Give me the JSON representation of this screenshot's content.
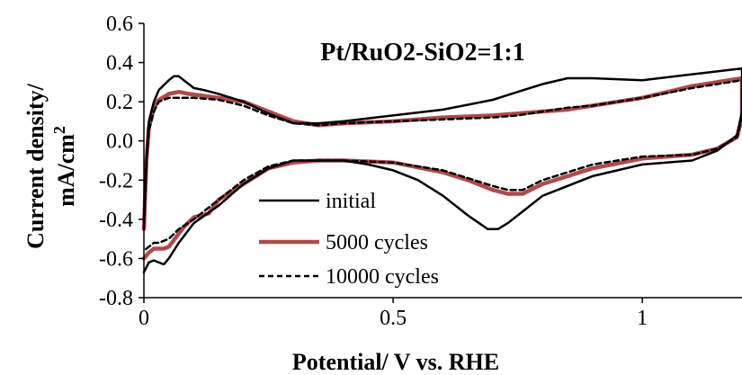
{
  "chart_data": {
    "type": "line",
    "title": "Pt/RuO2-SiO2=1:1",
    "xlabel": "Potential/ V vs. RHE",
    "ylabel_line1": "Current density/",
    "ylabel_line2": "mA/cm",
    "ylabel_sup": "2",
    "xlim": [
      0,
      1.2
    ],
    "ylim": [
      -0.8,
      0.6
    ],
    "x_ticks": [
      0,
      0.5,
      1
    ],
    "x_tick_labels": [
      "0",
      "0.5",
      "1"
    ],
    "y_ticks": [
      -0.8,
      -0.6,
      -0.4,
      -0.2,
      0.0,
      0.2,
      0.4,
      0.6
    ],
    "y_tick_labels": [
      "-0.8",
      "-0.6",
      "-0.4",
      "-0.2",
      "0.0",
      "0.2",
      "0.4",
      "0.6"
    ],
    "grid": false,
    "legend_position": "lower-left",
    "series": [
      {
        "name": "initial",
        "color": "#000000",
        "style": "solid",
        "x": [
          0.0,
          0.005,
          0.01,
          0.02,
          0.03,
          0.05,
          0.06,
          0.07,
          0.08,
          0.09,
          0.1,
          0.12,
          0.15,
          0.2,
          0.25,
          0.3,
          0.35,
          0.4,
          0.5,
          0.6,
          0.7,
          0.75,
          0.8,
          0.85,
          0.9,
          1.0,
          1.1,
          1.2,
          1.2,
          1.19,
          1.15,
          1.1,
          1.0,
          0.9,
          0.8,
          0.76,
          0.73,
          0.71,
          0.69,
          0.65,
          0.6,
          0.55,
          0.5,
          0.45,
          0.4,
          0.35,
          0.3,
          0.25,
          0.2,
          0.15,
          0.1,
          0.07,
          0.05,
          0.04,
          0.02,
          0.01,
          0.0
        ],
        "y": [
          -0.45,
          -0.1,
          0.1,
          0.2,
          0.26,
          0.31,
          0.33,
          0.33,
          0.31,
          0.29,
          0.27,
          0.26,
          0.24,
          0.2,
          0.14,
          0.09,
          0.09,
          0.1,
          0.13,
          0.16,
          0.21,
          0.25,
          0.29,
          0.32,
          0.32,
          0.31,
          0.34,
          0.37,
          0.15,
          0.03,
          -0.05,
          -0.1,
          -0.12,
          -0.18,
          -0.28,
          -0.36,
          -0.42,
          -0.45,
          -0.45,
          -0.38,
          -0.28,
          -0.2,
          -0.15,
          -0.12,
          -0.1,
          -0.1,
          -0.1,
          -0.14,
          -0.22,
          -0.33,
          -0.42,
          -0.52,
          -0.6,
          -0.63,
          -0.61,
          -0.62,
          -0.67
        ]
      },
      {
        "name": "5000 cycles",
        "color": "#b04a4a",
        "style": "solid",
        "x": [
          0.0,
          0.005,
          0.01,
          0.02,
          0.03,
          0.05,
          0.07,
          0.09,
          0.12,
          0.15,
          0.2,
          0.25,
          0.3,
          0.35,
          0.4,
          0.5,
          0.6,
          0.7,
          0.75,
          0.8,
          0.85,
          0.9,
          1.0,
          1.1,
          1.2,
          1.2,
          1.19,
          1.15,
          1.1,
          1.0,
          0.9,
          0.8,
          0.76,
          0.73,
          0.7,
          0.65,
          0.6,
          0.5,
          0.4,
          0.35,
          0.3,
          0.25,
          0.2,
          0.15,
          0.13,
          0.1,
          0.08,
          0.05,
          0.04,
          0.02,
          0.01,
          0.0
        ],
        "y": [
          -0.45,
          -0.1,
          0.07,
          0.17,
          0.21,
          0.24,
          0.25,
          0.24,
          0.23,
          0.22,
          0.2,
          0.15,
          0.1,
          0.08,
          0.09,
          0.1,
          0.12,
          0.13,
          0.14,
          0.15,
          0.16,
          0.18,
          0.22,
          0.28,
          0.32,
          0.12,
          0.02,
          -0.04,
          -0.07,
          -0.09,
          -0.14,
          -0.22,
          -0.27,
          -0.27,
          -0.25,
          -0.2,
          -0.16,
          -0.11,
          -0.1,
          -0.1,
          -0.11,
          -0.14,
          -0.22,
          -0.3,
          -0.37,
          -0.39,
          -0.44,
          -0.54,
          -0.55,
          -0.55,
          -0.57,
          -0.6
        ]
      },
      {
        "name": "10000 cycles",
        "color": "#000000",
        "style": "dashed",
        "x": [
          0.0,
          0.005,
          0.01,
          0.02,
          0.03,
          0.05,
          0.07,
          0.1,
          0.15,
          0.2,
          0.25,
          0.3,
          0.35,
          0.4,
          0.5,
          0.6,
          0.7,
          0.75,
          0.8,
          0.85,
          0.9,
          1.0,
          1.1,
          1.2,
          1.2,
          1.19,
          1.15,
          1.1,
          1.0,
          0.9,
          0.8,
          0.76,
          0.73,
          0.7,
          0.65,
          0.6,
          0.5,
          0.4,
          0.35,
          0.3,
          0.25,
          0.2,
          0.15,
          0.1,
          0.07,
          0.05,
          0.03,
          0.02,
          0.01,
          0.0
        ],
        "y": [
          -0.4,
          -0.1,
          0.05,
          0.15,
          0.2,
          0.22,
          0.22,
          0.22,
          0.21,
          0.18,
          0.13,
          0.09,
          0.08,
          0.09,
          0.1,
          0.11,
          0.12,
          0.13,
          0.15,
          0.17,
          0.18,
          0.22,
          0.27,
          0.31,
          0.12,
          0.02,
          -0.04,
          -0.07,
          -0.08,
          -0.12,
          -0.2,
          -0.25,
          -0.25,
          -0.23,
          -0.19,
          -0.15,
          -0.11,
          -0.1,
          -0.1,
          -0.1,
          -0.13,
          -0.2,
          -0.3,
          -0.4,
          -0.45,
          -0.5,
          -0.52,
          -0.52,
          -0.54,
          -0.56
        ]
      }
    ]
  }
}
